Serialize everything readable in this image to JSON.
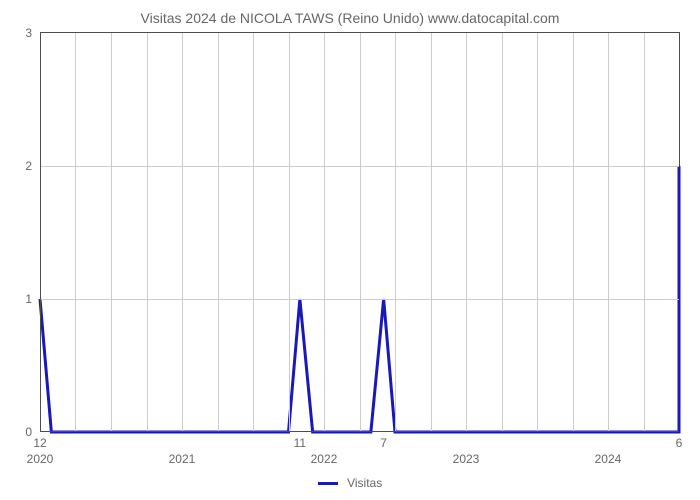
{
  "chart": {
    "type": "line",
    "title": "Visitas 2024 de NICOLA TAWS (Reino Unido) www.datocapital.com",
    "title_fontsize": 14,
    "title_color": "#666666",
    "background_color": "#ffffff",
    "grid_color": "#cccccc",
    "axis_color": "#4d4d4d",
    "tick_label_color": "#666666",
    "tick_label_fontsize": 12,
    "line_color": "#1818bb",
    "line_width": 3,
    "xlim": [
      0,
      4.5
    ],
    "ylim": [
      0,
      3
    ],
    "ytick_step": 1,
    "y_ticks": [
      {
        "v": 0,
        "label": "0"
      },
      {
        "v": 1,
        "label": "1"
      },
      {
        "v": 2,
        "label": "2"
      },
      {
        "v": 3,
        "label": "3"
      }
    ],
    "x_major_ticks": [
      {
        "v": 0,
        "label": "2020"
      },
      {
        "v": 1,
        "label": "2021"
      },
      {
        "v": 2,
        "label": "2022"
      },
      {
        "v": 3,
        "label": "2023"
      },
      {
        "v": 4,
        "label": "2024"
      }
    ],
    "x_minor_ticks": [
      0.25,
      0.5,
      0.75,
      1.25,
      1.5,
      1.75,
      2.25,
      2.5,
      2.75,
      3.25,
      3.5,
      3.75,
      4.25
    ],
    "x_data_labels": [
      {
        "v": 0,
        "label": "12"
      },
      {
        "v": 1.83,
        "label": "11"
      },
      {
        "v": 2.42,
        "label": "7"
      },
      {
        "v": 4.5,
        "label": "6"
      }
    ],
    "series": {
      "name": "Visitas",
      "points": [
        {
          "x": 0.0,
          "y": 1
        },
        {
          "x": 0.08,
          "y": 0
        },
        {
          "x": 1.75,
          "y": 0
        },
        {
          "x": 1.83,
          "y": 1
        },
        {
          "x": 1.92,
          "y": 0
        },
        {
          "x": 2.33,
          "y": 0
        },
        {
          "x": 2.42,
          "y": 1
        },
        {
          "x": 2.5,
          "y": 0
        },
        {
          "x": 4.5,
          "y": 0
        },
        {
          "x": 4.5,
          "y": 2
        }
      ]
    },
    "legend": {
      "label": "Visitas"
    }
  }
}
